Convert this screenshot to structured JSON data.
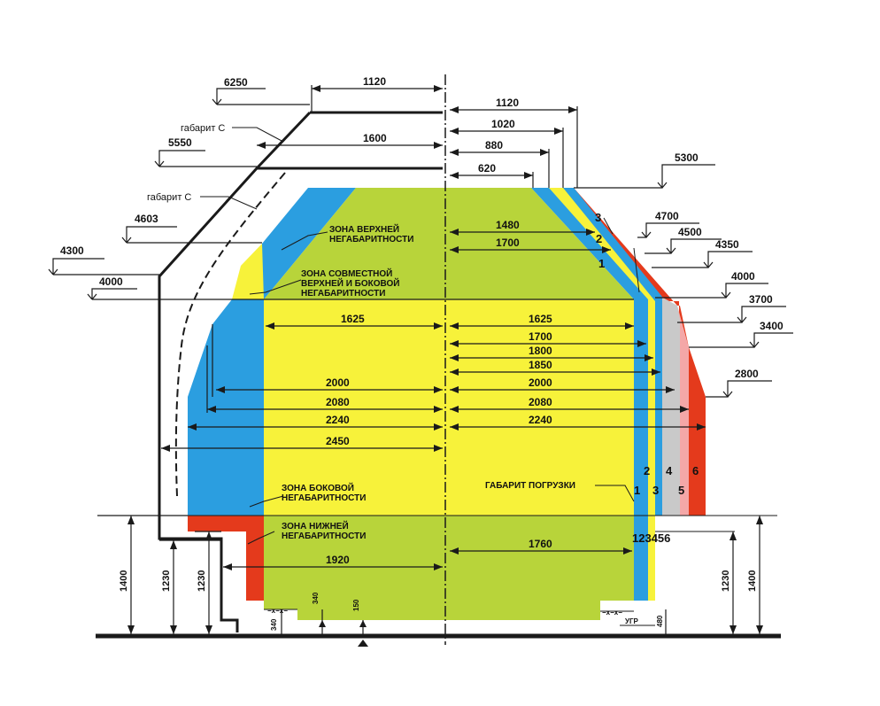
{
  "labels": {
    "gabarit_c_1": "габарит С",
    "gabarit_c_2": "габарит С",
    "zone_upper_1": "ЗОНА ВЕРХНЕЙ",
    "zone_upper_2": "НЕГАБАРИТНОСТИ",
    "zone_joint_1": "ЗОНА СОВМЕСТНОЙ",
    "zone_joint_2": "ВЕРХНЕЙ И БОКОВОЙ",
    "zone_joint_3": "НЕГАБАРИТНОСТИ",
    "zone_side_1": "ЗОНА БОКОВОЙ",
    "zone_side_2": "НЕГАБАРИТНОСТИ",
    "zone_lower_1": "ЗОНА НИЖНЕЙ",
    "zone_lower_2": "НЕГАБАРИТНОСТИ",
    "loading_gauge": "ГАБАРИТ ПОГРУЗКИ",
    "ugr": "УГР",
    "xx1": "−x−x−",
    "xx2": "−x−x−"
  },
  "heights_left": {
    "h6250": "6250",
    "h5550": "5550",
    "h4603": "4603",
    "h4300": "4300",
    "h4000": "4000"
  },
  "heights_right": {
    "h5300": "5300",
    "h4700": "4700",
    "h4500": "4500",
    "h4350": "4350",
    "h4000": "4000",
    "h3700": "3700",
    "h3400": "3400",
    "h2800": "2800"
  },
  "widths_top_left": {
    "w1120": "1120",
    "w1600": "1600"
  },
  "widths_top_right": {
    "w1120": "1120",
    "w1020": "1020",
    "w880": "880",
    "w620": "620",
    "w1480": "1480",
    "w1700": "1700"
  },
  "widths_left": {
    "w1625": "1625",
    "w2000": "2000",
    "w2080": "2080",
    "w2240": "2240",
    "w2450": "2450",
    "w1920": "1920"
  },
  "widths_right": {
    "w1625": "1625",
    "w1700": "1700",
    "w1800": "1800",
    "w1850": "1850",
    "w2000": "2000",
    "w2080": "2080",
    "w2240": "2240",
    "w1760": "1760"
  },
  "vertical_dims": {
    "l1400": "1400",
    "l1230a": "1230",
    "l1230b": "1230",
    "b340a": "340",
    "b340b": "340",
    "b150": "150",
    "b480": "480",
    "r1230": "1230",
    "r1400": "1400"
  },
  "degree_numbers": {
    "n1a": "1",
    "n2a": "2",
    "n3a": "3",
    "n1b": "1",
    "n2b": "2",
    "n3b": "3",
    "n4b": "4",
    "n5b": "5",
    "n6b": "6",
    "row": "123456"
  },
  "colors": {
    "green": "#b8d43a",
    "yellow": "#f7f23a",
    "blue": "#2b9ee0",
    "gray": "#c9c9c9",
    "pink": "#f4a7a7",
    "red": "#e43a1c",
    "line": "#1a1a1a"
  }
}
